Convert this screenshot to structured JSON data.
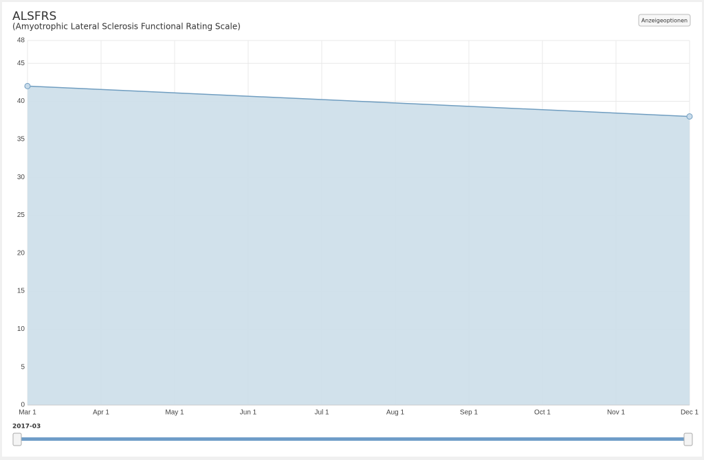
{
  "chart_data": {
    "type": "area",
    "title": "ALSFRS",
    "subtitle": "(Amyotrophic Lateral Sclerosis Functional Rating Scale)",
    "x": [
      "Mar 1",
      "Dec 1"
    ],
    "values": [
      42,
      38
    ],
    "xticks": [
      "Mar 1",
      "Apr 1",
      "May 1",
      "Jun 1",
      "Jul 1",
      "Aug 1",
      "Sep 1",
      "Oct 1",
      "Nov 1",
      "Dec 1"
    ],
    "ylim": [
      0,
      48
    ],
    "yticks": [
      0,
      5,
      10,
      15,
      20,
      25,
      30,
      35,
      40,
      45,
      48
    ],
    "color": "#6f9dc0",
    "fill": "#cfdfea",
    "grid": true
  },
  "ui": {
    "button": "Anzeigeoptionen",
    "slider_label": "2017-03"
  }
}
